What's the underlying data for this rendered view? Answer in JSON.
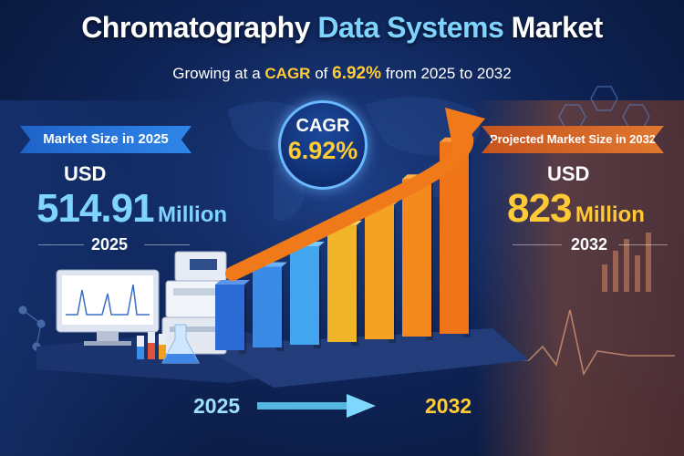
{
  "header": {
    "title_main": "Chromatography",
    "title_accent": "Data Systems",
    "title_end": "Market",
    "subtitle_pre": "Growing at a",
    "subtitle_key": "CAGR",
    "subtitle_of": "of",
    "subtitle_value": "6.92%",
    "subtitle_post": "from 2025 to 2032"
  },
  "left_panel": {
    "banner": "Market Size in 2025",
    "currency": "USD",
    "amount": "514.91",
    "unit": "Million",
    "year": "2025"
  },
  "right_panel": {
    "banner": "Projected Market Size in 2032",
    "currency": "USD",
    "amount": "823",
    "unit": "Million",
    "year": "2032"
  },
  "badge": {
    "label": "CAGR",
    "value": "6.92%"
  },
  "timeline": {
    "start": "2025",
    "end": "2032"
  },
  "colors": {
    "accent_blue": "#7fd4ff",
    "accent_gold": "#ffc936",
    "arrow_orange": "#f07a1a"
  },
  "chart_data": {
    "type": "bar",
    "categories": [
      "",
      "",
      "",
      "",
      "",
      "",
      ""
    ],
    "values": [
      1.0,
      1.23,
      1.5,
      1.78,
      2.05,
      2.4,
      2.92
    ],
    "title": "",
    "xlabel": "",
    "ylabel": ""
  }
}
